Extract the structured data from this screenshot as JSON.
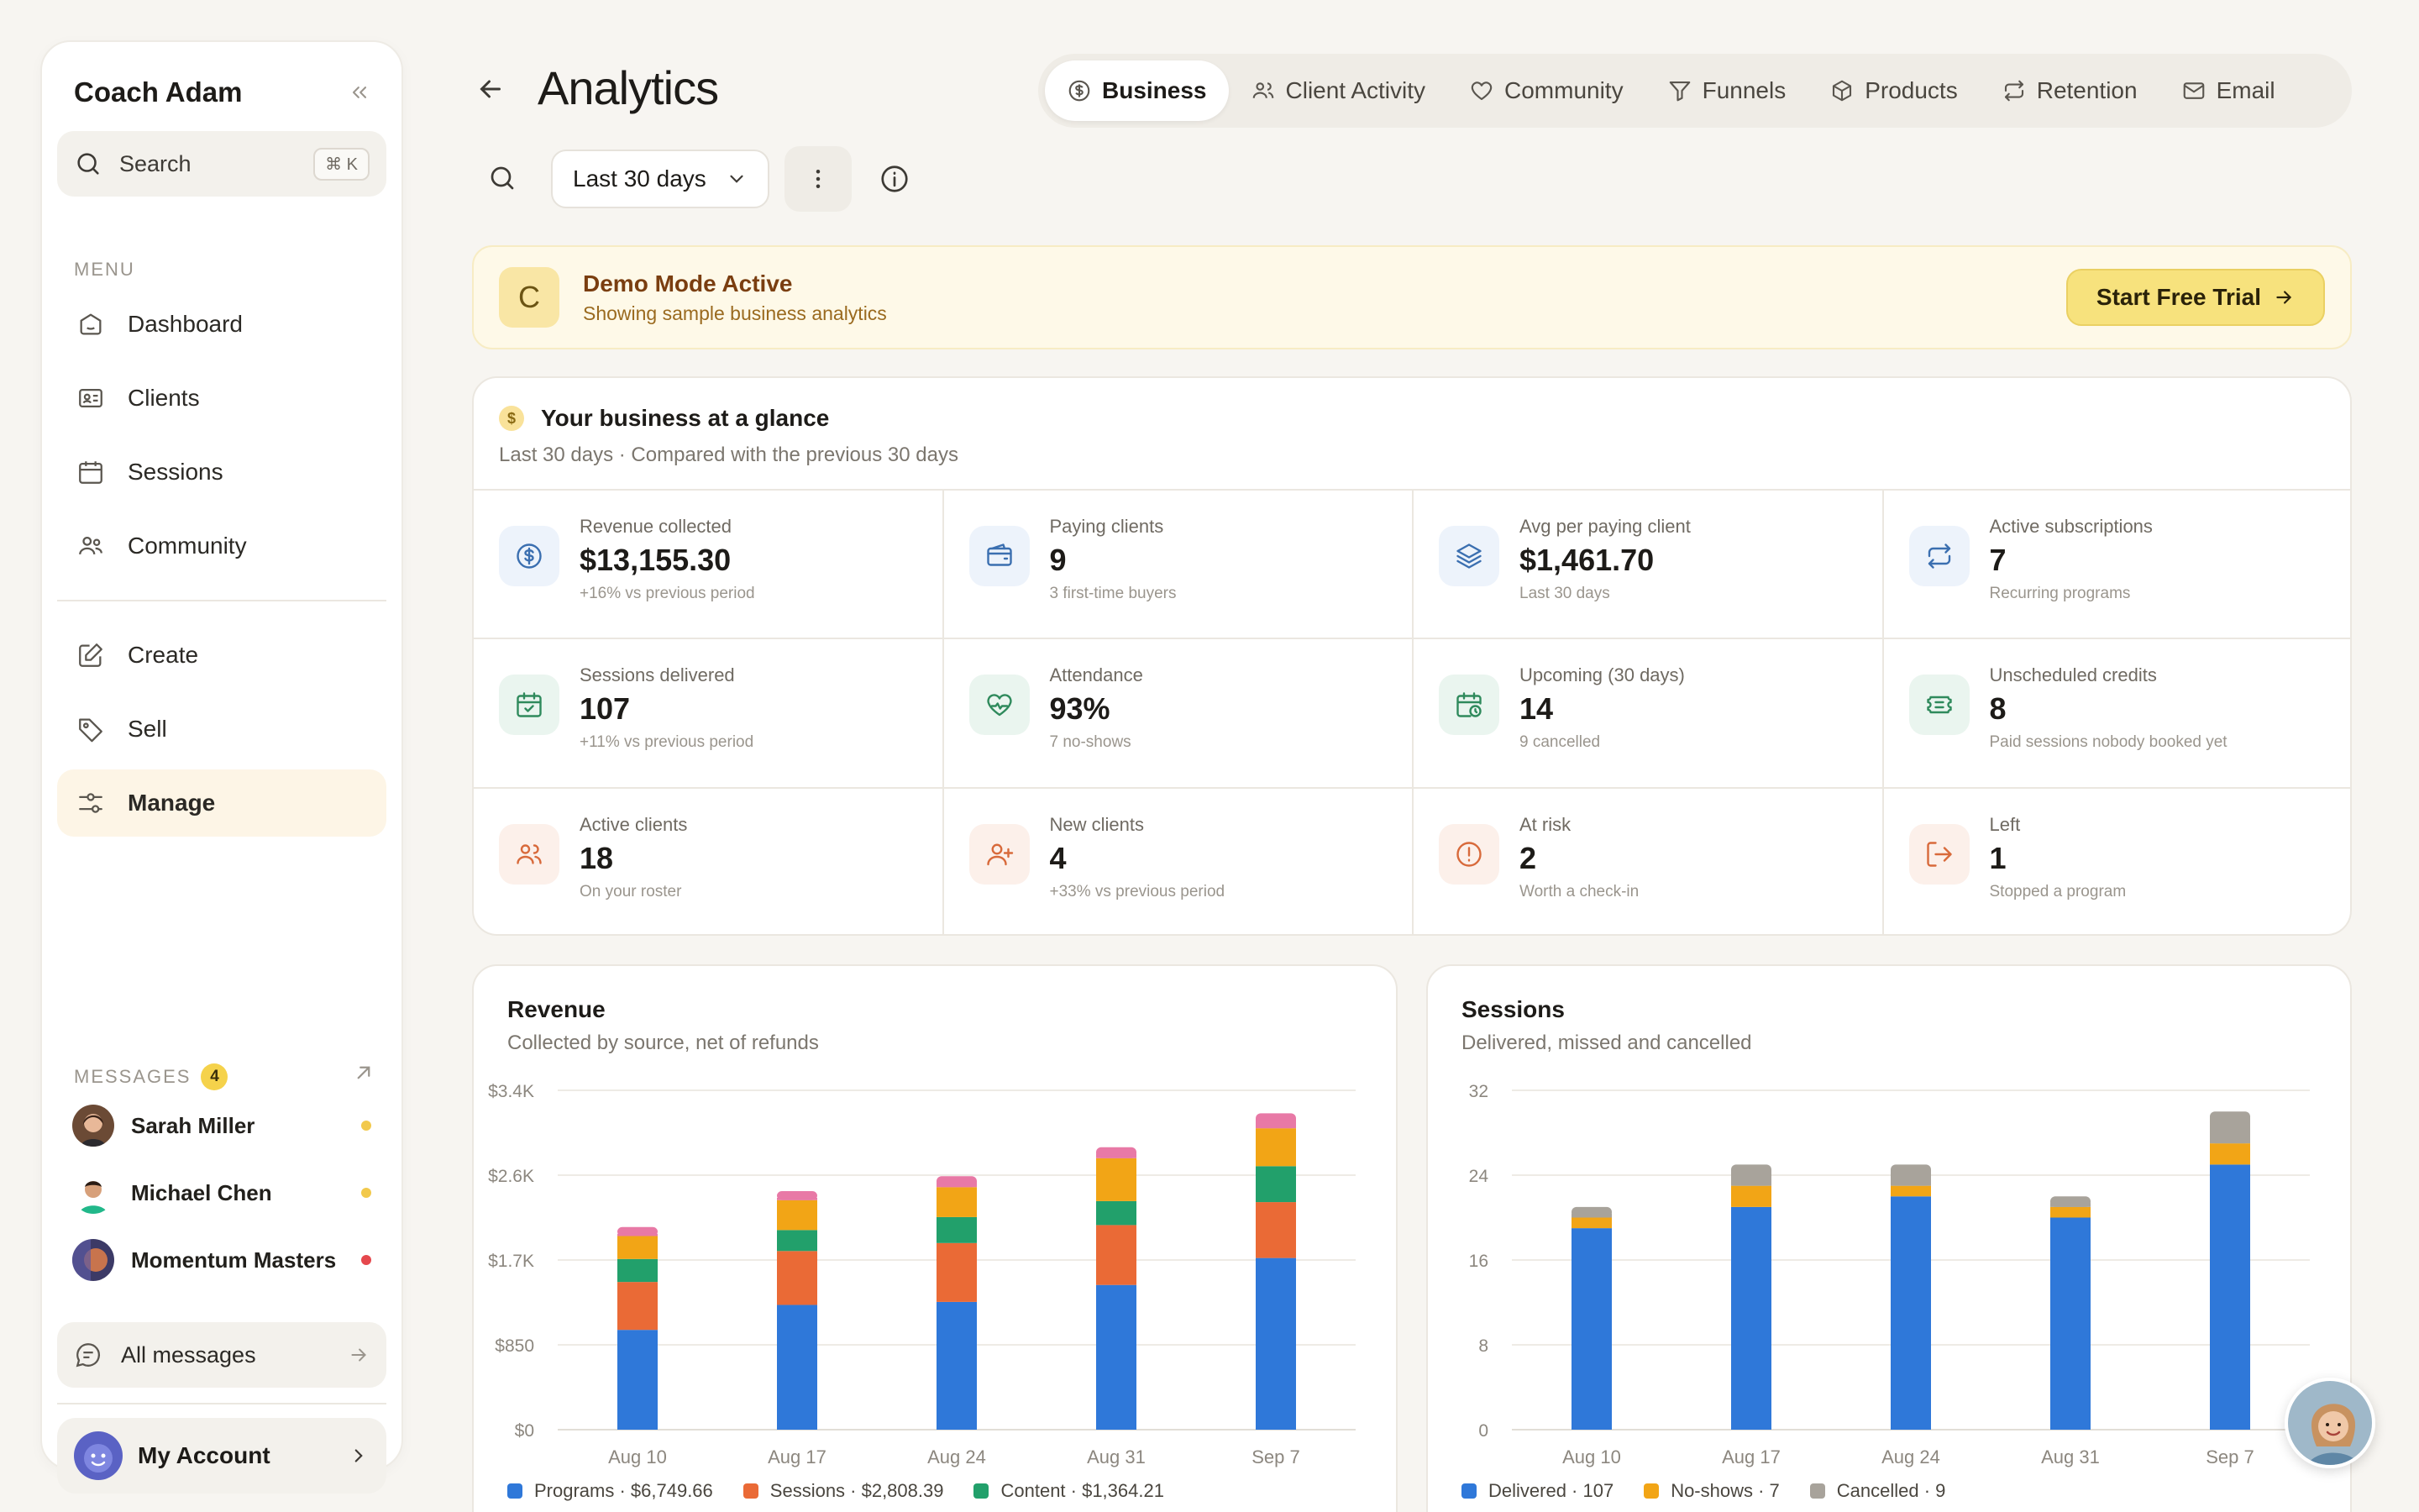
{
  "sidebar": {
    "title": "Coach Adam",
    "search": {
      "label": "Search",
      "shortcut": "⌘ K"
    },
    "menu_label": "MENU",
    "items": [
      {
        "label": "Dashboard",
        "icon": "dashboard-icon"
      },
      {
        "label": "Clients",
        "icon": "clients-card-icon"
      },
      {
        "label": "Sessions",
        "icon": "calendar-icon"
      },
      {
        "label": "Community",
        "icon": "community-icon"
      },
      {
        "label": "Create",
        "icon": "edit-icon"
      },
      {
        "label": "Sell",
        "icon": "tag-icon"
      },
      {
        "label": "Manage",
        "icon": "sliders-icon",
        "active": true
      }
    ],
    "messages": {
      "label": "MESSAGES",
      "count": "4",
      "threads": [
        {
          "name": "Sarah Miller",
          "dot_color": "#f2c94c"
        },
        {
          "name": "Michael Chen",
          "dot_color": "#f2c94c"
        },
        {
          "name": "Momentum Masters",
          "dot_color": "#e5484d"
        }
      ],
      "all_label": "All messages"
    },
    "account_label": "My Account"
  },
  "header": {
    "title": "Analytics",
    "tabs": [
      {
        "label": "Business",
        "icon": "dollar-coin-icon",
        "active": true
      },
      {
        "label": "Client Activity",
        "icon": "users-icon"
      },
      {
        "label": "Community",
        "icon": "heart-icon"
      },
      {
        "label": "Funnels",
        "icon": "funnel-icon"
      },
      {
        "label": "Products",
        "icon": "box-icon"
      },
      {
        "label": "Retention",
        "icon": "repeat-icon"
      },
      {
        "label": "Email",
        "icon": "mail-icon"
      }
    ],
    "range": "Last 30 days"
  },
  "demo": {
    "icon_letter": "C",
    "title": "Demo Mode Active",
    "subtitle": "Showing sample business analytics",
    "cta": "Start Free Trial"
  },
  "glance": {
    "title": "Your business at a glance",
    "subtitle": "Last 30 days · Compared with the previous 30 days",
    "stats": [
      {
        "label": "Revenue collected",
        "value": "$13,155.30",
        "note": "+16% vs previous period",
        "icon": "dollar-circle-icon",
        "tone": "blue"
      },
      {
        "label": "Paying clients",
        "value": "9",
        "note": "3 first-time buyers",
        "icon": "wallet-icon",
        "tone": "blue"
      },
      {
        "label": "Avg per paying client",
        "value": "$1,461.70",
        "note": "Last 30 days",
        "icon": "layers-icon",
        "tone": "blue"
      },
      {
        "label": "Active subscriptions",
        "value": "7",
        "note": "Recurring programs",
        "icon": "repeat-icon",
        "tone": "blue"
      },
      {
        "label": "Sessions delivered",
        "value": "107",
        "note": "+11% vs previous period",
        "icon": "calendar-check-icon",
        "tone": "green"
      },
      {
        "label": "Attendance",
        "value": "93%",
        "note": "7 no-shows",
        "icon": "heart-pulse-icon",
        "tone": "green"
      },
      {
        "label": "Upcoming (30 days)",
        "value": "14",
        "note": "9 cancelled",
        "icon": "calendar-clock-icon",
        "tone": "green"
      },
      {
        "label": "Unscheduled credits",
        "value": "8",
        "note": "Paid sessions nobody booked yet",
        "icon": "ticket-icon",
        "tone": "green"
      },
      {
        "label": "Active clients",
        "value": "18",
        "note": "On your roster",
        "icon": "users-icon",
        "tone": "orange"
      },
      {
        "label": "New clients",
        "value": "4",
        "note": "+33% vs previous period",
        "icon": "user-plus-icon",
        "tone": "orange"
      },
      {
        "label": "At risk",
        "value": "2",
        "note": "Worth a check-in",
        "icon": "alert-circle-icon",
        "tone": "orange"
      },
      {
        "label": "Left",
        "value": "1",
        "note": "Stopped a program",
        "icon": "log-out-icon",
        "tone": "orange"
      }
    ]
  },
  "chart_data": [
    {
      "type": "bar",
      "stacked": true,
      "title": "Revenue",
      "subtitle": "Collected by source, net of refunds",
      "categories": [
        "Aug 10",
        "Aug 17",
        "Aug 24",
        "Aug 31",
        "Sep 7"
      ],
      "y_ticks": [
        "$0",
        "$850",
        "$1.7K",
        "$2.6K",
        "$3.4K"
      ],
      "ylim": [
        0,
        3400
      ],
      "grid": true,
      "legend_position": "bottom",
      "series": [
        {
          "name": "Programs",
          "legend": "Programs · $6,749.66",
          "color": "#2f78d9",
          "values": [
            1000,
            1250,
            1280,
            1450,
            1720
          ]
        },
        {
          "name": "Sessions",
          "legend": "Sessions · $2,808.39",
          "color": "#ea6a36",
          "values": [
            480,
            540,
            590,
            600,
            560
          ]
        },
        {
          "name": "Content",
          "legend": "Content · $1,364.21",
          "color": "#22a06b",
          "values": [
            230,
            210,
            260,
            240,
            360
          ]
        },
        {
          "name": "Yellow",
          "color": "#f2a516",
          "values": [
            230,
            300,
            300,
            430,
            380
          ]
        },
        {
          "name": "Pink",
          "color": "#e879a6",
          "values": [
            90,
            90,
            110,
            110,
            150
          ]
        }
      ]
    },
    {
      "type": "bar",
      "stacked": true,
      "title": "Sessions",
      "subtitle": "Delivered, missed and cancelled",
      "categories": [
        "Aug 10",
        "Aug 17",
        "Aug 24",
        "Aug 31",
        "Sep 7"
      ],
      "y_ticks": [
        "0",
        "8",
        "16",
        "24",
        "32"
      ],
      "ylim": [
        0,
        32
      ],
      "grid": true,
      "legend_position": "bottom",
      "series": [
        {
          "name": "Delivered",
          "legend": "Delivered · 107",
          "color": "#2f78d9",
          "values": [
            19,
            21,
            22,
            20,
            25
          ]
        },
        {
          "name": "No-shows",
          "legend": "No-shows · 7",
          "color": "#f2a516",
          "values": [
            1,
            2,
            1,
            1,
            2
          ]
        },
        {
          "name": "Cancelled",
          "legend": "Cancelled · 9",
          "color": "#a8a39b",
          "values": [
            1,
            2,
            2,
            1,
            3
          ]
        }
      ]
    }
  ]
}
